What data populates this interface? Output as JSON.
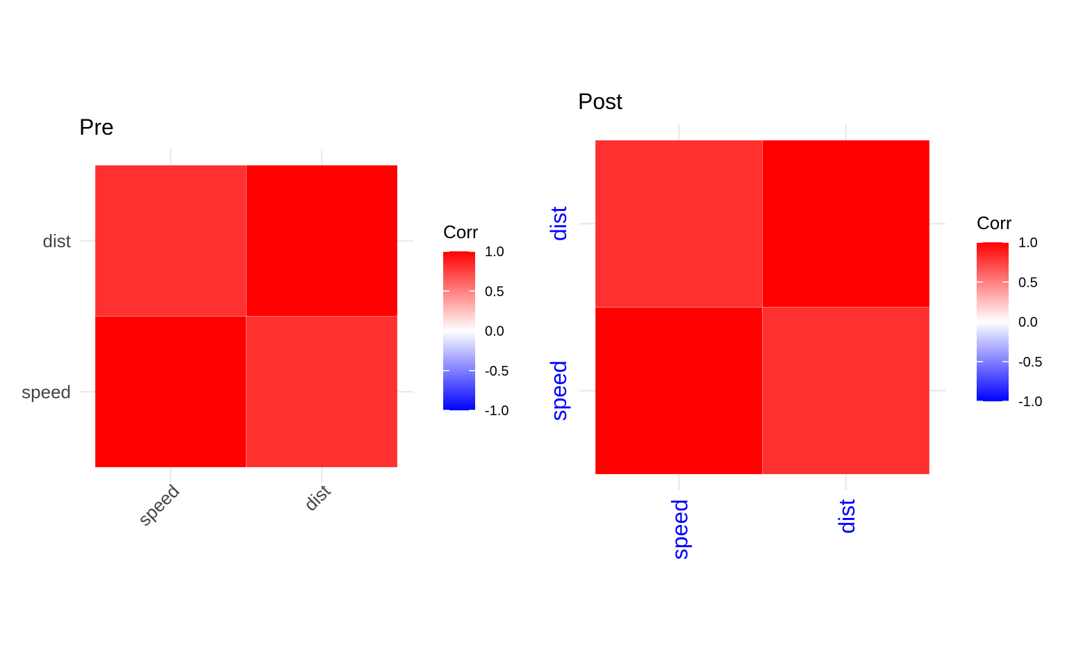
{
  "chart_data": [
    {
      "type": "heatmap",
      "title": "Pre",
      "x_categories": [
        "speed",
        "dist"
      ],
      "y_categories": [
        "speed",
        "dist"
      ],
      "values": [
        {
          "x": "speed",
          "y": "speed",
          "value": 1.0
        },
        {
          "x": "dist",
          "y": "speed",
          "value": 0.81
        },
        {
          "x": "speed",
          "y": "dist",
          "value": 0.81
        },
        {
          "x": "dist",
          "y": "dist",
          "value": 1.0
        }
      ],
      "legend": {
        "title": "Corr",
        "ticks": [
          "1.0",
          "0.5",
          "0.0",
          "-0.5",
          "-1.0"
        ],
        "range": [
          -1,
          1
        ],
        "low_color": "#0000FF",
        "mid_color": "#FFFFFF",
        "high_color": "#FF0000"
      },
      "grid": true,
      "axis_label_color": "#444444",
      "x_label_angle": "-45"
    },
    {
      "type": "heatmap",
      "title": "Post",
      "x_categories": [
        "speed",
        "dist"
      ],
      "y_categories": [
        "speed",
        "dist"
      ],
      "values": [
        {
          "x": "speed",
          "y": "speed",
          "value": 1.0
        },
        {
          "x": "dist",
          "y": "speed",
          "value": 0.81
        },
        {
          "x": "speed",
          "y": "dist",
          "value": 0.81
        },
        {
          "x": "dist",
          "y": "dist",
          "value": 1.0
        }
      ],
      "legend": {
        "title": "Corr",
        "ticks": [
          "1.0",
          "0.5",
          "0.0",
          "-0.5",
          "-1.0"
        ],
        "range": [
          -1,
          1
        ],
        "low_color": "#0000FF",
        "mid_color": "#FFFFFF",
        "high_color": "#FF0000"
      },
      "grid": true,
      "axis_label_color": "#0000FF",
      "x_label_angle": "-90"
    }
  ]
}
